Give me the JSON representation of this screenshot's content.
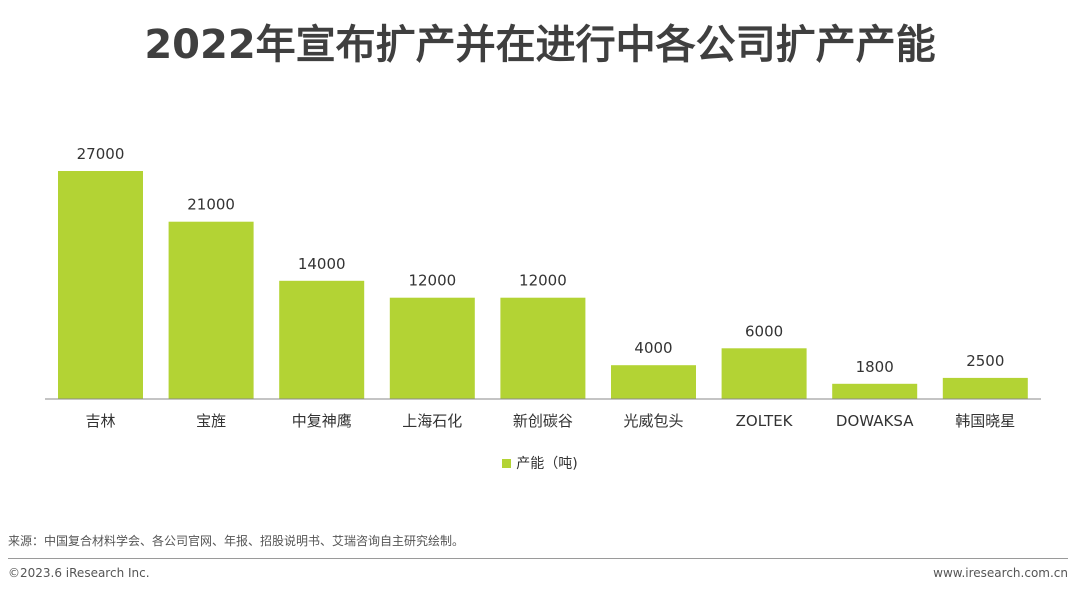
{
  "title": "2022年宣布扩产并在进行中各公司扩产产能",
  "legend": {
    "label": "产能（吨)"
  },
  "source": "来源：中国复合材料学会、各公司官网、年报、招股说明书、艾瑞咨询自主研究绘制。",
  "copyright": "©2023.6 iResearch Inc.",
  "website": "www.iresearch.com.cn",
  "colors": {
    "bar": "#b3d334",
    "axis": "#8a8a8a"
  },
  "chart_data": {
    "type": "bar",
    "title": "2022年宣布扩产并在进行中各公司扩产产能",
    "categories": [
      "吉林",
      "宝旌",
      "中复神鹰",
      "上海石化",
      "新创碳谷",
      "光威包头",
      "ZOLTEK",
      "DOWAKSA",
      "韩国晓星"
    ],
    "series": [
      {
        "name": "产能（吨)",
        "values": [
          27000,
          21000,
          14000,
          12000,
          12000,
          4000,
          6000,
          1800,
          2500
        ]
      }
    ],
    "data_labels": [
      "27000",
      "21000",
      "14000",
      "12000",
      "12000",
      "4000",
      "6000",
      "1800",
      "2500"
    ],
    "ylim": [
      0,
      27000
    ],
    "grid": false,
    "y_axis_visible": false,
    "legend_position": "bottom-center"
  }
}
